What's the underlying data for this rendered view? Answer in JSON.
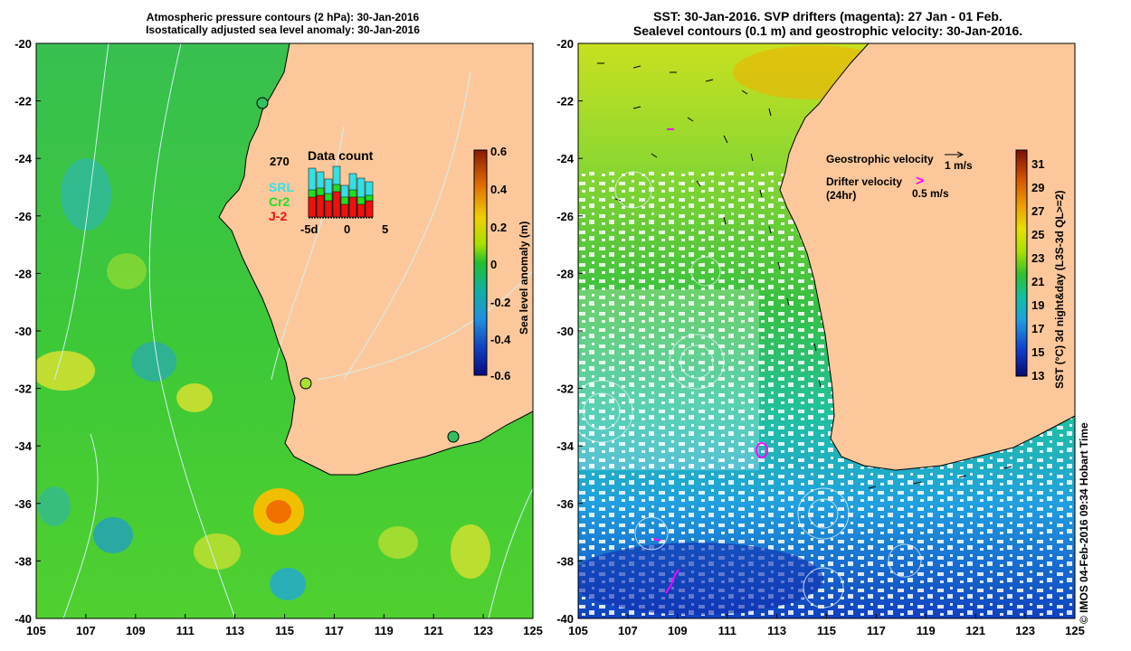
{
  "left_panel": {
    "title_line1": "Atmospheric pressure contours (2 hPa): 30-Jan-2016",
    "title_line2": "Isostatically adjusted sea level anomaly: 30-Jan-2016",
    "colorbar_label": "Sea level anomaly (m)",
    "colorbar_ticks": [
      "0.6",
      "0.4",
      "0.2",
      "0",
      "-0.2",
      "-0.4",
      "-0.6"
    ],
    "inset": {
      "title": "Data count",
      "max_label": "270",
      "legend": [
        "SRL",
        "Cr2",
        "J-2"
      ],
      "legend_colors": [
        "#33e0e6",
        "#22dd22",
        "#ee1111"
      ],
      "x_ticks": [
        "-5d",
        "0",
        "5"
      ]
    }
  },
  "right_panel": {
    "title_line1": "SST: 30-Jan-2016. SVP drifters (magenta): 27 Jan - 01 Feb.",
    "title_line2": "Sealevel contours (0.1 m) and geostrophic velocity: 30-Jan-2016.",
    "colorbar_label": "SST (°C) 3d night&day (L3S-3d QL>=2)",
    "colorbar_ticks": [
      "31",
      "29",
      "27",
      "25",
      "23",
      "21",
      "19",
      "17",
      "15",
      "13"
    ],
    "geo_velocity_label": "Geostrophic velocity",
    "geo_velocity_scale": "1 m/s",
    "drifter_label_line1": "Drifter velocity",
    "drifter_label_line2": "(24hr)",
    "drifter_scale": "0.5 m/s",
    "drifter_marker": ">"
  },
  "axes": {
    "x_ticks": [
      "105",
      "107",
      "109",
      "111",
      "113",
      "115",
      "117",
      "119",
      "121",
      "123",
      "125"
    ],
    "y_ticks": [
      "-20",
      "-22",
      "-24",
      "-26",
      "-28",
      "-30",
      "-32",
      "-34",
      "-36",
      "-38",
      "-40"
    ]
  },
  "credit": "© IMOS 04-Feb-2016 09:34 Hobart Time",
  "colors": {
    "land": "#fcc89b",
    "magenta": "#ff00ff"
  }
}
